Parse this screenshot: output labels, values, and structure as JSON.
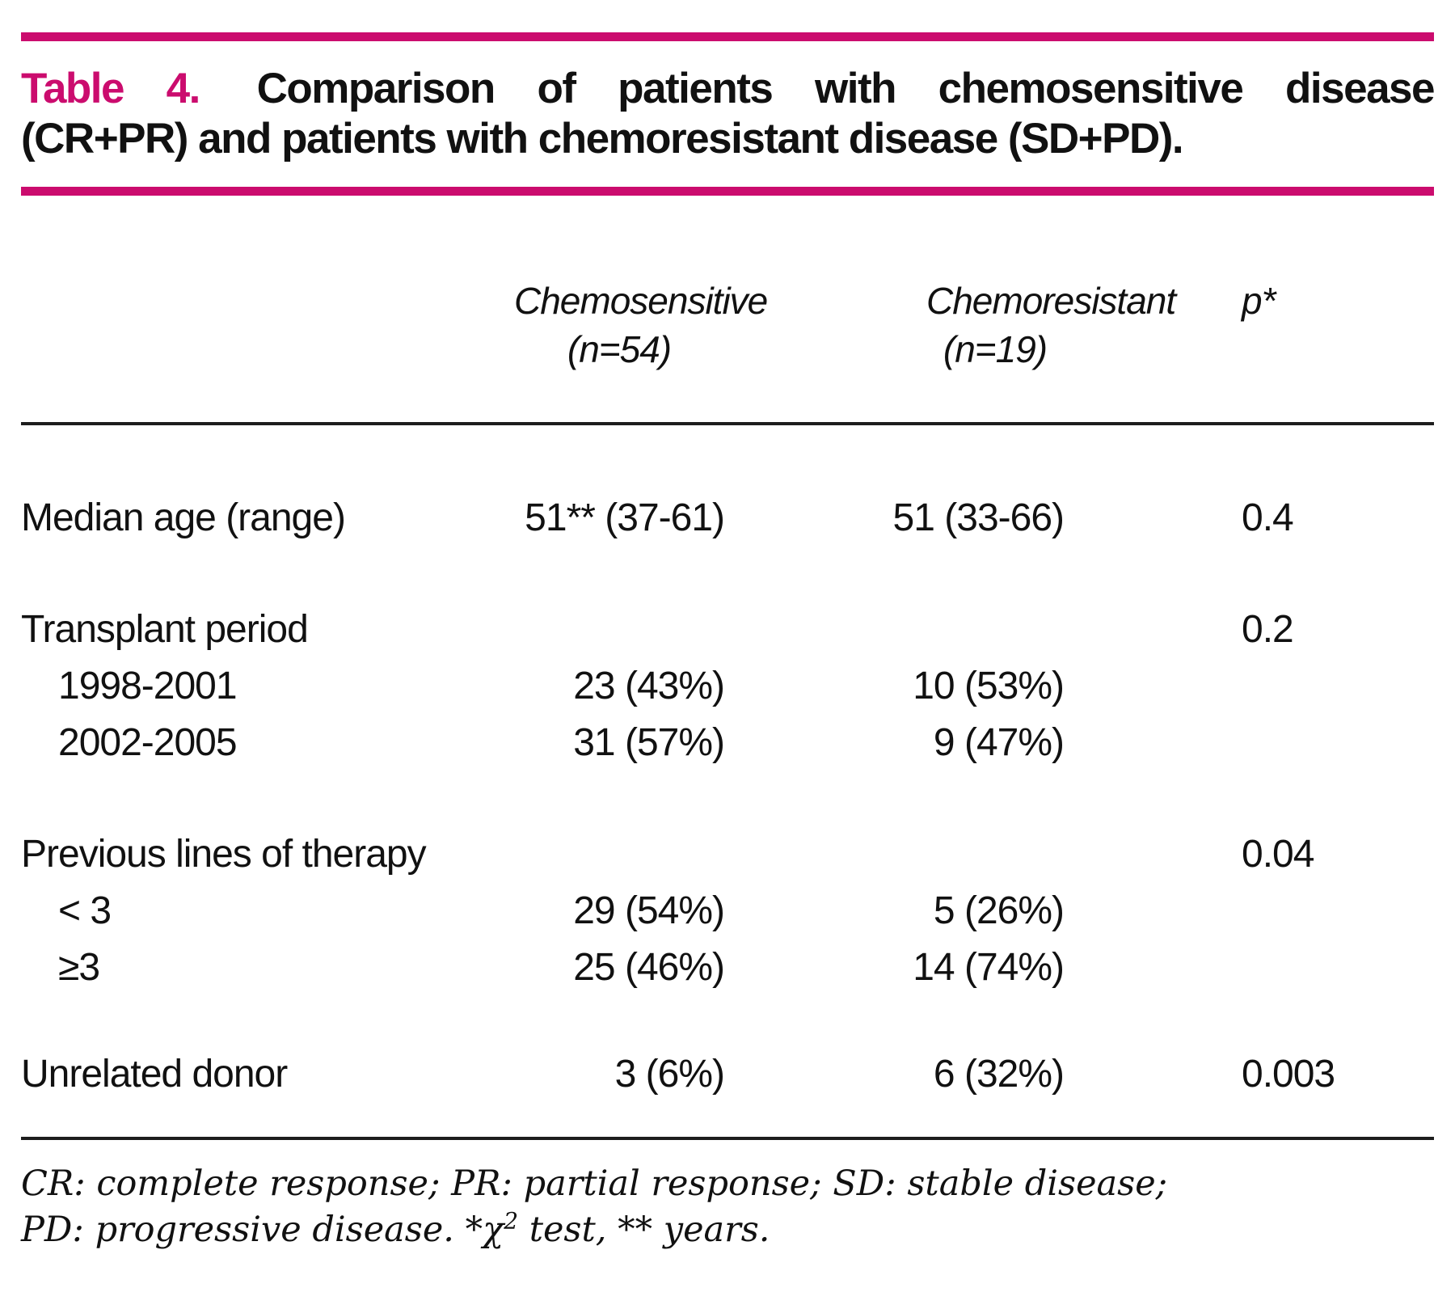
{
  "caption": {
    "label": "Table 4.",
    "line1": "Comparison of patients with chemosensitive disease",
    "line2": "(CR+PR) and patients with chemoresistant disease (SD+PD)."
  },
  "columns": {
    "chemosensitive": {
      "name": "Chemosensitive",
      "n": "(n=54)"
    },
    "chemoresistant": {
      "name": "Chemoresistant",
      "n": "(n=19)"
    },
    "p": "p*"
  },
  "rows": [
    {
      "label": "Median age (range)",
      "chemosensitive": "51** (37-61)",
      "chemoresistant": "51 (33-66)",
      "p": "0.4"
    },
    {
      "label": "Transplant period",
      "chemosensitive": "",
      "chemoresistant": "",
      "p": "0.2"
    },
    {
      "label": "1998-2001",
      "chemosensitive": "23 (43%)",
      "chemoresistant": "10 (53%)",
      "p": ""
    },
    {
      "label": "2002-2005",
      "chemosensitive": "31 (57%)",
      "chemoresistant": "9 (47%)",
      "p": ""
    },
    {
      "label": "Previous lines of therapy",
      "chemosensitive": "",
      "chemoresistant": "",
      "p": "0.04"
    },
    {
      "label": "< 3",
      "chemosensitive": "29 (54%)",
      "chemoresistant": "5 (26%)",
      "p": ""
    },
    {
      "label": "≥3",
      "chemosensitive": "25 (46%)",
      "chemoresistant": "14 (74%)",
      "p": ""
    },
    {
      "label": "Unrelated donor",
      "chemosensitive": "3 (6%)",
      "chemoresistant": "6 (32%)",
      "p": "0.003"
    }
  ],
  "footnote": {
    "line1": "CR: complete response; PR: partial response; SD: stable disease;",
    "line2_pre": "PD: progressive disease. *χ",
    "line2_sup": "2",
    "line2_post": " test, ** years."
  },
  "colors": {
    "accent": "#cb0c6e",
    "text": "#111111",
    "rule": "#1d1d1d"
  }
}
